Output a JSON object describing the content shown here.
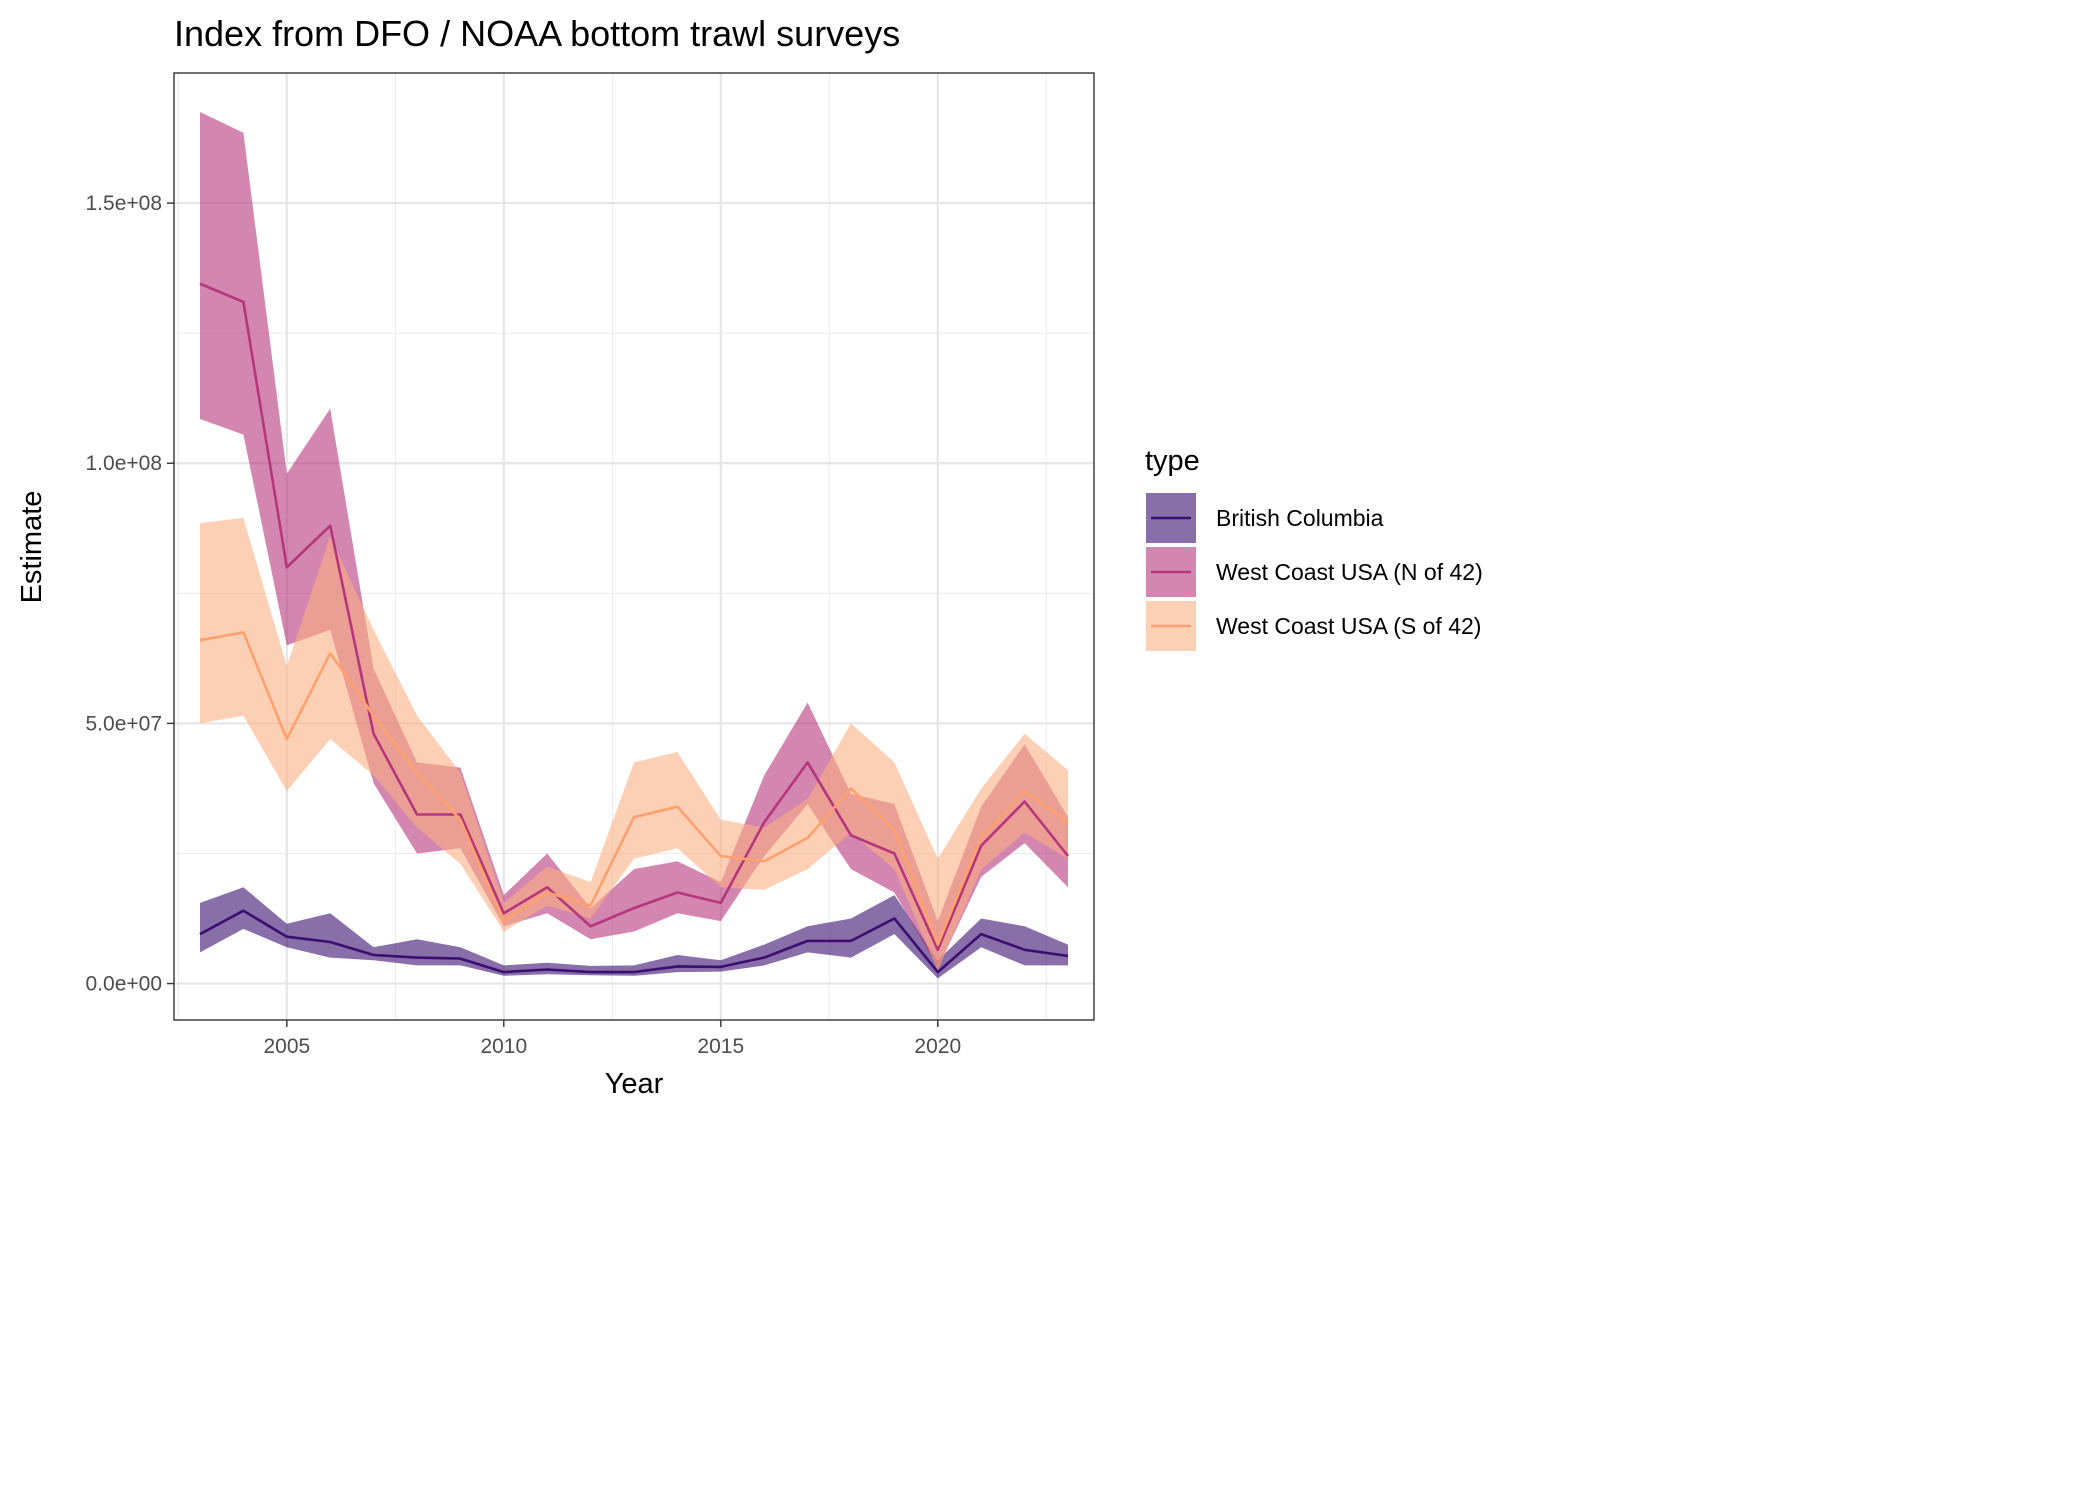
{
  "chart_data": {
    "type": "line",
    "title": "Index from DFO / NOAA bottom trawl surveys",
    "xlabel": "Year",
    "ylabel": "Estimate",
    "xlim": [
      2002.4,
      2023.6
    ],
    "ylim": [
      -7000000,
      175000000
    ],
    "x_ticks": [
      2005,
      2010,
      2015,
      2020
    ],
    "x_tick_labels": [
      "2005",
      "2010",
      "2015",
      "2020"
    ],
    "y_ticks": [
      0,
      50000000,
      100000000,
      150000000
    ],
    "y_tick_labels": [
      "0.0e+00",
      "5.0e+07",
      "1.0e+08",
      "1.5e+08"
    ],
    "grid": true,
    "legend": {
      "title": "type",
      "position": "right"
    },
    "x": [
      2003,
      2004,
      2005,
      2006,
      2007,
      2008,
      2009,
      2010,
      2011,
      2012,
      2013,
      2014,
      2015,
      2016,
      2017,
      2018,
      2019,
      2020,
      2021,
      2022,
      2023
    ],
    "series": [
      {
        "name": "British Columbia",
        "line_color": "#3b0f70",
        "fill_color": "#3b0f70",
        "values": [
          9500000,
          14000000,
          9000000,
          8000000,
          5500000,
          5000000,
          4800000,
          2200000,
          2700000,
          2200000,
          2200000,
          3300000,
          3200000,
          5000000,
          8200000,
          8200000,
          12500000,
          2200000,
          9500000,
          6500000,
          5300000
        ],
        "lower": [
          6000000,
          10500000,
          7000000,
          5000000,
          4500000,
          3500000,
          3500000,
          1500000,
          1800000,
          1600000,
          1500000,
          2200000,
          2300000,
          3500000,
          6000000,
          5000000,
          9500000,
          1000000,
          7000000,
          3500000,
          3500000
        ],
        "upper": [
          15500000,
          18500000,
          11500000,
          13500000,
          7000000,
          8500000,
          7000000,
          3500000,
          4000000,
          3400000,
          3500000,
          5500000,
          4500000,
          7500000,
          11000000,
          12500000,
          17000000,
          4500000,
          12500000,
          11000000,
          7500000
        ]
      },
      {
        "name": "West Coast USA (N of 42)",
        "line_color": "#b5367a",
        "fill_color": "#b5367a",
        "values": [
          134500000,
          131000000,
          80000000,
          88000000,
          48000000,
          32500000,
          32500000,
          13500000,
          18500000,
          11000000,
          14500000,
          17500000,
          15500000,
          31000000,
          42500000,
          28500000,
          25000000,
          6500000,
          26500000,
          35000000,
          24500000
        ],
        "lower": [
          108500000,
          105500000,
          65000000,
          68000000,
          38500000,
          25000000,
          26000000,
          11000000,
          13500000,
          8500000,
          10000000,
          13500000,
          12000000,
          24500000,
          34500000,
          22000000,
          17500000,
          3000000,
          20500000,
          27000000,
          18500000
        ],
        "upper": [
          167500000,
          163500000,
          98000000,
          110500000,
          60500000,
          42500000,
          41500000,
          17000000,
          25000000,
          14500000,
          22000000,
          23500000,
          19500000,
          40000000,
          54000000,
          36500000,
          34500000,
          12000000,
          34000000,
          46000000,
          32000000
        ]
      },
      {
        "name": "West Coast USA (S of 42)",
        "line_color": "#fea16e",
        "fill_color": "#fcaf82",
        "values": [
          66000000,
          67500000,
          47000000,
          63500000,
          51500000,
          40500000,
          31500000,
          12000000,
          17500000,
          15000000,
          32000000,
          34000000,
          24500000,
          23500000,
          28000000,
          37500000,
          29500000,
          7500000,
          28000000,
          37000000,
          31000000
        ],
        "lower": [
          50000000,
          51500000,
          37000000,
          47000000,
          40000000,
          30000000,
          23000000,
          10000000,
          15000000,
          12500000,
          24000000,
          26000000,
          18500000,
          18000000,
          22000000,
          29000000,
          22000000,
          2500000,
          22000000,
          29000000,
          24000000
        ],
        "upper": [
          88500000,
          89500000,
          61000000,
          86000000,
          68000000,
          51500000,
          40500000,
          15500000,
          22500000,
          19500000,
          42500000,
          44500000,
          31500000,
          30000000,
          35500000,
          50000000,
          42500000,
          24000000,
          37500000,
          48000000,
          41000000
        ]
      }
    ]
  }
}
